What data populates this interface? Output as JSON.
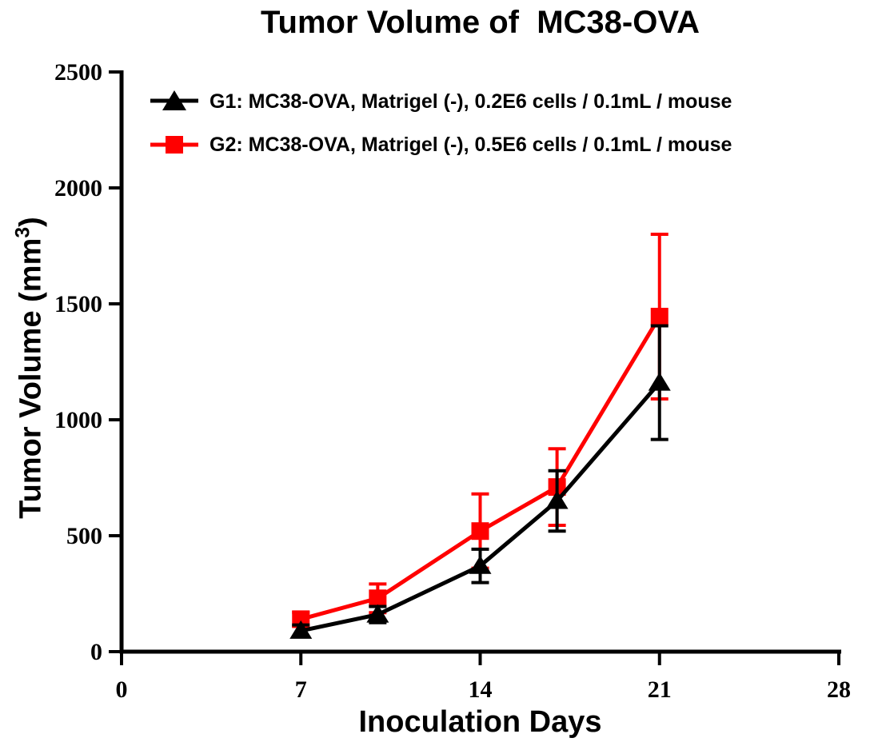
{
  "figure": {
    "background": "#ffffff",
    "text_color": "#000000"
  },
  "chart_data": {
    "type": "line",
    "title": "Tumor Volume of  MC38-OVA",
    "xlabel": "Inoculation Days",
    "ylabel": "Tumor Volume (mm³)",
    "ylabel_parts": {
      "main": "Tumor Volume (mm",
      "sup": "3",
      "close": ")"
    },
    "x": [
      7,
      10,
      14,
      17,
      21
    ],
    "series": [
      {
        "name": "G1",
        "label": "G1: MC38-OVA, Matrigel (-), 0.2E6 cells / 0.1mL / mouse",
        "color": "#000000",
        "marker": "triangle",
        "values": [
          90,
          160,
          370,
          650,
          1160
        ],
        "sd": [
          25,
          35,
          72,
          130,
          245
        ]
      },
      {
        "name": "G2",
        "label": "G2: MC38-OVA, Matrigel (-), 0.5E6 cells / 0.1mL / mouse",
        "color": "#FF0000",
        "marker": "square",
        "values": [
          140,
          230,
          520,
          710,
          1445
        ],
        "sd": [
          30,
          62,
          160,
          165,
          355
        ]
      }
    ],
    "x_ticks": [
      0,
      7,
      14,
      21,
      28
    ],
    "y_ticks": [
      0,
      500,
      1000,
      1500,
      2000,
      2500
    ],
    "xlim": [
      0,
      28
    ],
    "ylim": [
      0,
      2500
    ],
    "grid": false,
    "legend_position": "top-left",
    "error_bars": "sd"
  }
}
